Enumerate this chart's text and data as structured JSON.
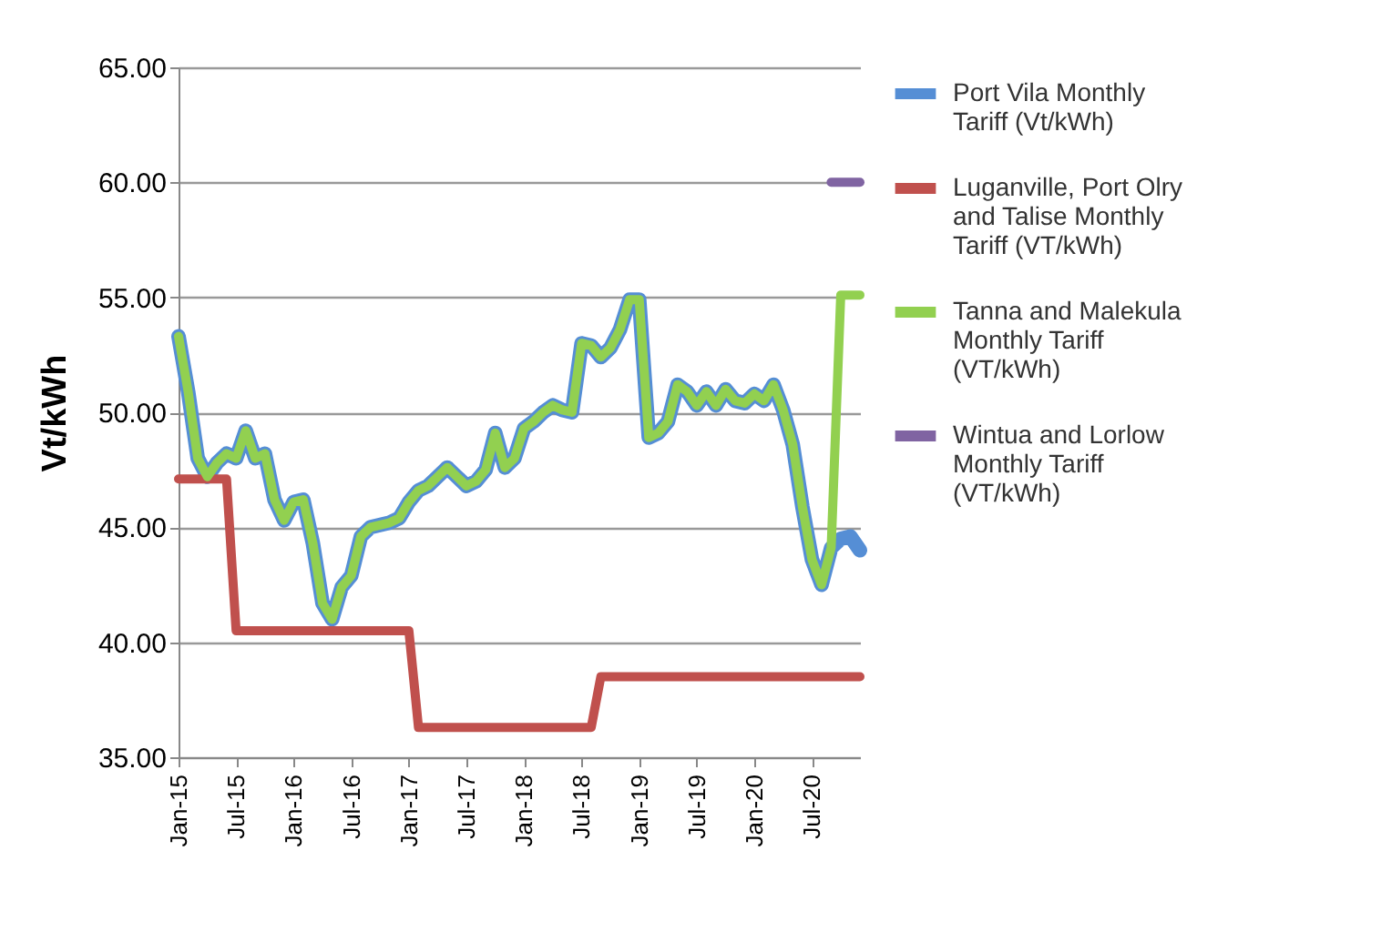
{
  "chart_data": {
    "type": "line",
    "ylabel": "Vt/kWh",
    "categories": [
      "Jan-15",
      null,
      null,
      null,
      null,
      null,
      "Jul-15",
      null,
      null,
      null,
      null,
      null,
      "Jan-16",
      null,
      null,
      null,
      null,
      null,
      "Jul-16",
      null,
      null,
      null,
      null,
      null,
      "Jan-17",
      null,
      null,
      null,
      null,
      null,
      "Jul-17",
      null,
      null,
      null,
      null,
      null,
      "Jan-18",
      null,
      null,
      null,
      null,
      null,
      "Jul-18",
      null,
      null,
      null,
      null,
      null,
      "Jan-19",
      null,
      null,
      null,
      null,
      null,
      "Jul-19",
      null,
      null,
      null,
      null,
      null,
      "Jan-20",
      null,
      null,
      null,
      null,
      null,
      "Jul-20",
      null,
      null,
      null,
      null,
      null
    ],
    "series": [
      {
        "name": "Port Vila Monthly Tariff (Vt/kWh)",
        "color": "#558ed5",
        "values": [
          53.3,
          50.9,
          48.0,
          47.2,
          47.8,
          48.2,
          48.0,
          49.2,
          48.0,
          48.2,
          46.2,
          45.3,
          46.1,
          46.2,
          44.3,
          41.7,
          41.0,
          42.4,
          42.9,
          44.6,
          45.0,
          45.1,
          45.2,
          45.4,
          46.1,
          46.6,
          46.8,
          47.2,
          47.6,
          47.2,
          46.8,
          47.0,
          47.5,
          49.1,
          47.6,
          48.0,
          49.3,
          49.6,
          50.0,
          50.3,
          50.1,
          50.0,
          53.0,
          52.9,
          52.4,
          52.8,
          53.6,
          54.9,
          54.9,
          48.9,
          49.1,
          49.6,
          51.2,
          50.9,
          50.3,
          50.9,
          50.3,
          51.0,
          50.5,
          50.4,
          50.8,
          50.5,
          51.2,
          50.1,
          48.6,
          45.9,
          43.6,
          42.5,
          44.1,
          44.5,
          44.6,
          44.0
        ]
      },
      {
        "name": "Luganville, Port Olry and Talise Monthly Tariff (VT/kWh)",
        "color": "#c0504d",
        "values": [
          47.1,
          47.1,
          47.1,
          47.1,
          47.1,
          47.1,
          40.5,
          40.5,
          40.5,
          40.5,
          40.5,
          40.5,
          40.5,
          40.5,
          40.5,
          40.5,
          40.5,
          40.5,
          40.5,
          40.5,
          40.5,
          40.5,
          40.5,
          40.5,
          40.5,
          36.3,
          36.3,
          36.3,
          36.3,
          36.3,
          36.3,
          36.3,
          36.3,
          36.3,
          36.3,
          36.3,
          36.3,
          36.3,
          36.3,
          36.3,
          36.3,
          36.3,
          36.3,
          36.3,
          38.5,
          38.5,
          38.5,
          38.5,
          38.5,
          38.5,
          38.5,
          38.5,
          38.5,
          38.5,
          38.5,
          38.5,
          38.5,
          38.5,
          38.5,
          38.5,
          38.5,
          38.5,
          38.5,
          38.5,
          38.5,
          38.5,
          38.5,
          38.5,
          38.5,
          38.5,
          38.5,
          38.5
        ]
      },
      {
        "name": "Tanna and Malekula Monthly Tariff (VT/kWh)",
        "color": "#92d050",
        "values": [
          53.3,
          50.9,
          48.0,
          47.2,
          47.8,
          48.2,
          48.0,
          49.2,
          48.0,
          48.2,
          46.2,
          45.3,
          46.1,
          46.2,
          44.3,
          41.7,
          41.0,
          42.4,
          42.9,
          44.6,
          45.0,
          45.1,
          45.2,
          45.4,
          46.1,
          46.6,
          46.8,
          47.2,
          47.6,
          47.2,
          46.8,
          47.0,
          47.5,
          49.1,
          47.6,
          48.0,
          49.3,
          49.6,
          50.0,
          50.3,
          50.1,
          50.0,
          53.0,
          52.9,
          52.4,
          52.8,
          53.6,
          54.9,
          54.9,
          48.9,
          49.1,
          49.6,
          51.2,
          50.9,
          50.3,
          50.9,
          50.3,
          51.0,
          50.5,
          50.4,
          50.8,
          50.5,
          51.2,
          50.1,
          48.6,
          45.9,
          43.6,
          42.5,
          44.1,
          55.1,
          55.1,
          55.1
        ]
      },
      {
        "name": "Wintua and Lorlow Monthly Tariff (VT/kWh)",
        "color": "#8064a2",
        "values": [
          null,
          null,
          null,
          null,
          null,
          null,
          null,
          null,
          null,
          null,
          null,
          null,
          null,
          null,
          null,
          null,
          null,
          null,
          null,
          null,
          null,
          null,
          null,
          null,
          null,
          null,
          null,
          null,
          null,
          null,
          null,
          null,
          null,
          null,
          null,
          null,
          null,
          null,
          null,
          null,
          null,
          null,
          null,
          null,
          null,
          null,
          null,
          null,
          null,
          null,
          null,
          null,
          null,
          null,
          null,
          null,
          null,
          null,
          null,
          null,
          null,
          null,
          null,
          null,
          null,
          null,
          null,
          null,
          60.0,
          60.0,
          60.0,
          60.0
        ]
      }
    ],
    "ylim": [
      35,
      65
    ],
    "yticks": [
      {
        "value": 35,
        "label": "35.00"
      },
      {
        "value": 40,
        "label": "40.00"
      },
      {
        "value": 45,
        "label": "45.00"
      },
      {
        "value": 50,
        "label": "50.00"
      },
      {
        "value": 55,
        "label": "55.00"
      },
      {
        "value": 60,
        "label": "60.00"
      },
      {
        "value": 65,
        "label": "65.00"
      }
    ],
    "grid": "y",
    "legend": "right",
    "line_style": "solid",
    "marker": "none"
  }
}
